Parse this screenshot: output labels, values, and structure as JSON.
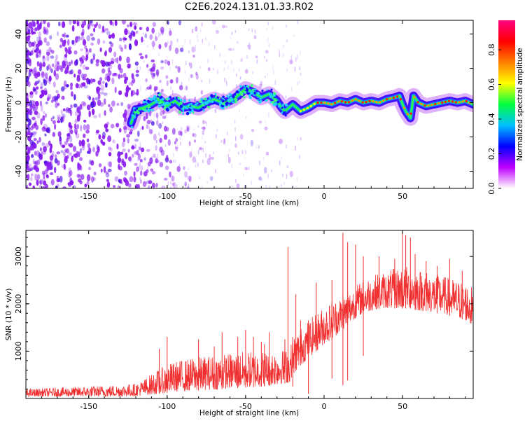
{
  "title": "C2E6.2024.131.01.33.R02",
  "chart_data": [
    {
      "type": "heatmap",
      "xlabel": "Height of straight line (km)",
      "ylabel": "Frequency (Hz)",
      "xlim": [
        -190,
        95
      ],
      "ylim": [
        -50,
        48
      ],
      "x_ticks": [
        -150,
        -100,
        -50,
        0,
        50
      ],
      "y_ticks": [
        -40,
        -20,
        0,
        20,
        40
      ],
      "colorbar": {
        "label": "Normalized spectral amplitude",
        "range": [
          0,
          0.97
        ],
        "ticks": [
          0.0,
          0.2,
          0.4,
          0.6,
          0.8
        ],
        "colors": [
          "#ffffff",
          "#c000ff",
          "#0000ff",
          "#00c0ff",
          "#00ff40",
          "#ffff00",
          "#ff8000",
          "#ff0000",
          "#ff0080"
        ]
      },
      "ridge": {
        "x": [
          -123,
          -120,
          -115,
          -110,
          -105,
          -100,
          -95,
          -90,
          -85,
          -80,
          -75,
          -70,
          -65,
          -60,
          -55,
          -50,
          -45,
          -40,
          -35,
          -30,
          -27,
          -25,
          -20,
          -15,
          -10,
          -5,
          0,
          5,
          10,
          15,
          20,
          25,
          30,
          35,
          40,
          45,
          48,
          50,
          52,
          55,
          57,
          60,
          65,
          70,
          75,
          80,
          85,
          90,
          95
        ],
        "y": [
          -12,
          -4,
          -3,
          -1,
          2,
          -2,
          1,
          -3,
          -2,
          -3,
          0,
          2,
          0,
          1,
          4,
          8,
          6,
          3,
          5,
          1,
          -3,
          -5,
          -1,
          -5,
          -3,
          0,
          0,
          -1,
          1,
          0,
          2,
          0,
          1,
          0,
          2,
          3,
          4,
          -1,
          -5,
          -9,
          4,
          0,
          -2,
          -1,
          0,
          1,
          0,
          1,
          -1
        ]
      },
      "grid": false,
      "legend": "colorbar-right"
    },
    {
      "type": "line",
      "xlabel": "Height of straight line (km)",
      "ylabel": "SNR (10 * v/v)",
      "xlim": [
        -190,
        95
      ],
      "ylim": [
        0,
        3550
      ],
      "x_ticks": [
        -150,
        -100,
        -50,
        0,
        50
      ],
      "y_ticks": [
        1000,
        2000,
        3000
      ],
      "color": "#f03030",
      "envelope": {
        "x": [
          -190,
          -170,
          -150,
          -130,
          -120,
          -115,
          -110,
          -105,
          -100,
          -95,
          -90,
          -85,
          -80,
          -75,
          -70,
          -65,
          -60,
          -55,
          -50,
          -45,
          -40,
          -35,
          -30,
          -25,
          -22,
          -20,
          -15,
          -10,
          -5,
          0,
          5,
          10,
          15,
          20,
          25,
          30,
          35,
          40,
          45,
          50,
          55,
          60,
          65,
          70,
          75,
          80,
          85,
          90,
          95
        ],
        "low": [
          40,
          40,
          40,
          40,
          50,
          60,
          80,
          100,
          120,
          140,
          150,
          160,
          170,
          180,
          190,
          200,
          210,
          220,
          230,
          240,
          250,
          270,
          290,
          320,
          340,
          500,
          700,
          850,
          1000,
          1150,
          1250,
          1400,
          1550,
          1700,
          1800,
          1850,
          1900,
          1900,
          1900,
          1900,
          1900,
          1850,
          1850,
          1800,
          1800,
          1750,
          1700,
          1650,
          1500
        ],
        "high": [
          200,
          230,
          260,
          290,
          320,
          400,
          520,
          620,
          720,
          780,
          820,
          850,
          880,
          900,
          920,
          940,
          960,
          980,
          1000,
          1000,
          1010,
          1020,
          1030,
          1040,
          1050,
          1300,
          1500,
          1650,
          1800,
          1950,
          2050,
          2150,
          2250,
          2400,
          2500,
          2600,
          2650,
          2700,
          2750,
          2800,
          2800,
          2750,
          2700,
          2650,
          2600,
          2550,
          2500,
          2450,
          2350
        ]
      },
      "spikes": {
        "x": [
          -105,
          -100,
          -80,
          -70,
          -65,
          -55,
          -50,
          -45,
          -40,
          -38,
          -35,
          -25,
          -23,
          -18,
          -15,
          -5,
          5,
          12,
          15,
          20,
          25,
          35,
          45,
          50,
          52,
          55,
          58,
          65,
          72,
          80,
          88
        ],
        "y": [
          1050,
          1300,
          1250,
          1100,
          1400,
          1300,
          1450,
          1300,
          1200,
          1150,
          1400,
          1250,
          3200,
          2200,
          1650,
          2450,
          2500,
          3500,
          3300,
          3250,
          3000,
          3000,
          2950,
          3550,
          3450,
          3400,
          3050,
          2900,
          2800,
          2950,
          2700
        ]
      },
      "dips": {
        "x": [
          -20,
          -10,
          5,
          12,
          15,
          25
        ],
        "y": [
          250,
          100,
          420,
          280,
          380,
          900
        ]
      },
      "grid": false
    }
  ]
}
